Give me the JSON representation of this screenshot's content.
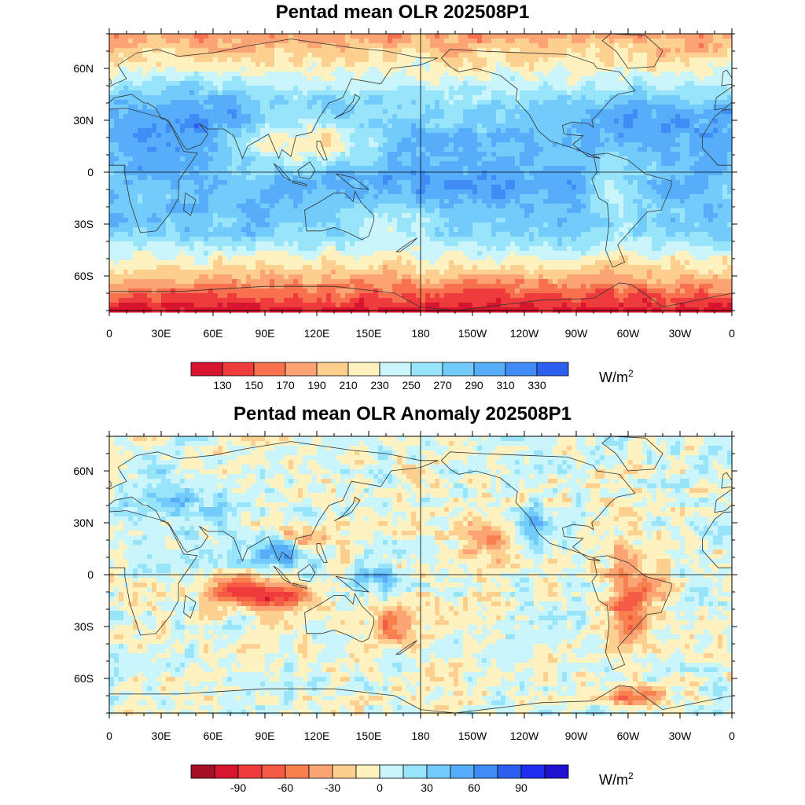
{
  "panels": [
    {
      "title": "Pentad mean OLR 202508P1",
      "units": "W/m",
      "units_sup": "2",
      "x_ticks": [
        "0",
        "30E",
        "60E",
        "90E",
        "120E",
        "150E",
        "180",
        "150W",
        "120W",
        "90W",
        "60W",
        "30W",
        "0"
      ],
      "y_ticks": [
        "60N",
        "30N",
        "0",
        "30S",
        "60S"
      ],
      "colorbar": {
        "labels": [
          "130",
          "150",
          "170",
          "190",
          "210",
          "230",
          "250",
          "270",
          "290",
          "310",
          "330"
        ],
        "colors": [
          "#d7152e",
          "#ef3b3b",
          "#f8714f",
          "#fca474",
          "#fdd08f",
          "#fdf2c0",
          "#c9f5fb",
          "#98e4fb",
          "#72cbfb",
          "#56aefb",
          "#3f8cf6",
          "#2b5ff0"
        ]
      }
    },
    {
      "title": "Pentad mean OLR Anomaly 202508P1",
      "units": "W/m",
      "units_sup": "2",
      "x_ticks": [
        "0",
        "30E",
        "60E",
        "90E",
        "120E",
        "150E",
        "180",
        "150W",
        "120W",
        "90W",
        "60W",
        "30W",
        "0"
      ],
      "y_ticks": [
        "60N",
        "30N",
        "0",
        "30S",
        "60S"
      ],
      "colorbar": {
        "labels": [
          "-90",
          "-60",
          "-30",
          "0",
          "30",
          "60",
          "90"
        ],
        "colors": [
          "#a50f26",
          "#d7152e",
          "#ef3b3b",
          "#f45a44",
          "#f8804f",
          "#fca474",
          "#fdd08f",
          "#fdf2c0",
          "#c9f5fb",
          "#98e4fb",
          "#72cbfb",
          "#56aefb",
          "#3f8cf6",
          "#2b5ff0",
          "#1f2ef0",
          "#2010d0"
        ]
      }
    }
  ]
}
